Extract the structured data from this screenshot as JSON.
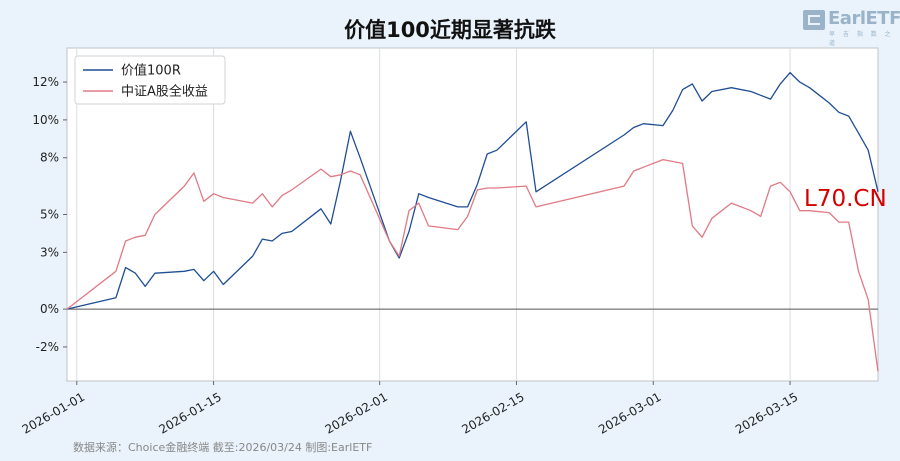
{
  "header": {
    "title": "价值100近期显著抗跌"
  },
  "brand": {
    "logo_text": "EarlETF",
    "logo_subtext": "早 吉 指 数 之 道"
  },
  "footer": {
    "source": "数据来源：Choice金融终端 截至:2026/03/24 制图:EarlETF"
  },
  "watermark": {
    "text": "L70.CN"
  },
  "chart_data": {
    "type": "line",
    "title": "价值100近期显著抗跌",
    "xlabel": "",
    "ylabel": "",
    "x_ticks": [
      "2026-01-01",
      "2026-01-15",
      "2026-02-01",
      "2026-02-15",
      "2026-03-01",
      "2026-03-15"
    ],
    "y_ticks": [
      -2,
      0,
      3,
      5,
      8,
      10,
      12
    ],
    "y_tick_labels": [
      "-2%",
      "0%",
      "3%",
      "5%",
      "8%",
      "10%",
      "12%"
    ],
    "ylim": [
      -3.8,
      13.8
    ],
    "xlim": [
      "2025-12-31",
      "2026-03-24"
    ],
    "grid": {
      "x": true,
      "y": false
    },
    "zero_line": true,
    "legend": "top-left",
    "series": [
      {
        "name": "价值100R",
        "color": "#1f4e96",
        "points": [
          [
            "2025-12-31",
            0.0
          ],
          [
            "2026-01-05",
            0.6
          ],
          [
            "2026-01-06",
            2.2
          ],
          [
            "2026-01-07",
            1.9
          ],
          [
            "2026-01-08",
            1.2
          ],
          [
            "2026-01-09",
            1.9
          ],
          [
            "2026-01-12",
            2.0
          ],
          [
            "2026-01-13",
            2.1
          ],
          [
            "2026-01-14",
            1.5
          ],
          [
            "2026-01-15",
            2.0
          ],
          [
            "2026-01-16",
            1.3
          ],
          [
            "2026-01-19",
            2.8
          ],
          [
            "2026-01-20",
            3.7
          ],
          [
            "2026-01-21",
            3.6
          ],
          [
            "2026-01-22",
            4.0
          ],
          [
            "2026-01-23",
            4.1
          ],
          [
            "2026-01-26",
            5.3
          ],
          [
            "2026-01-27",
            4.5
          ],
          [
            "2026-01-28",
            6.8
          ],
          [
            "2026-01-29",
            9.4
          ],
          [
            "2026-01-30",
            8.0
          ],
          [
            "2026-02-02",
            3.6
          ],
          [
            "2026-02-03",
            2.7
          ],
          [
            "2026-02-04",
            4.1
          ],
          [
            "2026-02-05",
            6.1
          ],
          [
            "2026-02-06",
            5.9
          ],
          [
            "2026-02-09",
            5.4
          ],
          [
            "2026-02-10",
            5.4
          ],
          [
            "2026-02-11",
            6.6
          ],
          [
            "2026-02-12",
            8.2
          ],
          [
            "2026-02-13",
            8.4
          ],
          [
            "2026-02-16",
            9.9
          ],
          [
            "2026-02-17",
            6.2
          ],
          [
            "2026-02-26",
            9.2
          ],
          [
            "2026-02-27",
            9.6
          ],
          [
            "2026-02-28",
            9.8
          ],
          [
            "2026-03-02",
            9.7
          ],
          [
            "2026-03-03",
            10.5
          ],
          [
            "2026-03-04",
            11.6
          ],
          [
            "2026-03-05",
            11.9
          ],
          [
            "2026-03-06",
            11.0
          ],
          [
            "2026-03-07",
            11.5
          ],
          [
            "2026-03-09",
            11.7
          ],
          [
            "2026-03-11",
            11.5
          ],
          [
            "2026-03-12",
            11.3
          ],
          [
            "2026-03-13",
            11.1
          ],
          [
            "2026-03-14",
            11.9
          ],
          [
            "2026-03-15",
            12.5
          ],
          [
            "2026-03-16",
            12.0
          ],
          [
            "2026-03-17",
            11.7
          ],
          [
            "2026-03-18",
            11.3
          ],
          [
            "2026-03-19",
            10.9
          ],
          [
            "2026-03-20",
            10.4
          ],
          [
            "2026-03-21",
            10.2
          ],
          [
            "2026-03-22",
            9.3
          ],
          [
            "2026-03-23",
            8.4
          ],
          [
            "2026-03-24",
            6.2
          ]
        ]
      },
      {
        "name": "中证A股全收益",
        "color": "#e07a85",
        "points": [
          [
            "2025-12-31",
            0.0
          ],
          [
            "2026-01-05",
            2.0
          ],
          [
            "2026-01-06",
            3.6
          ],
          [
            "2026-01-07",
            3.8
          ],
          [
            "2026-01-08",
            3.9
          ],
          [
            "2026-01-09",
            5.0
          ],
          [
            "2026-01-12",
            6.5
          ],
          [
            "2026-01-13",
            7.2
          ],
          [
            "2026-01-14",
            5.7
          ],
          [
            "2026-01-15",
            6.1
          ],
          [
            "2026-01-16",
            5.9
          ],
          [
            "2026-01-19",
            5.6
          ],
          [
            "2026-01-20",
            6.1
          ],
          [
            "2026-01-21",
            5.4
          ],
          [
            "2026-01-22",
            6.0
          ],
          [
            "2026-01-23",
            6.3
          ],
          [
            "2026-01-26",
            7.4
          ],
          [
            "2026-01-27",
            7.0
          ],
          [
            "2026-01-28",
            7.1
          ],
          [
            "2026-01-29",
            7.3
          ],
          [
            "2026-01-30",
            7.1
          ],
          [
            "2026-02-02",
            3.6
          ],
          [
            "2026-02-03",
            2.8
          ],
          [
            "2026-02-04",
            5.2
          ],
          [
            "2026-02-05",
            5.6
          ],
          [
            "2026-02-06",
            4.4
          ],
          [
            "2026-02-09",
            4.2
          ],
          [
            "2026-02-10",
            4.9
          ],
          [
            "2026-02-11",
            6.3
          ],
          [
            "2026-02-12",
            6.4
          ],
          [
            "2026-02-13",
            6.4
          ],
          [
            "2026-02-16",
            6.5
          ],
          [
            "2026-02-17",
            5.4
          ],
          [
            "2026-02-26",
            6.5
          ],
          [
            "2026-02-27",
            7.3
          ],
          [
            "2026-02-28",
            7.5
          ],
          [
            "2026-03-02",
            7.9
          ],
          [
            "2026-03-03",
            7.8
          ],
          [
            "2026-03-04",
            7.7
          ],
          [
            "2026-03-05",
            4.4
          ],
          [
            "2026-03-06",
            3.8
          ],
          [
            "2026-03-07",
            4.8
          ],
          [
            "2026-03-09",
            5.6
          ],
          [
            "2026-03-11",
            5.2
          ],
          [
            "2026-03-12",
            4.9
          ],
          [
            "2026-03-13",
            6.5
          ],
          [
            "2026-03-14",
            6.7
          ],
          [
            "2026-03-15",
            6.2
          ],
          [
            "2026-03-16",
            5.2
          ],
          [
            "2026-03-17",
            5.2
          ],
          [
            "2026-03-19",
            5.1
          ],
          [
            "2026-03-20",
            4.6
          ],
          [
            "2026-03-21",
            4.6
          ],
          [
            "2026-03-22",
            2.0
          ],
          [
            "2026-03-23",
            0.5
          ],
          [
            "2026-03-24",
            -3.3
          ]
        ]
      }
    ]
  }
}
